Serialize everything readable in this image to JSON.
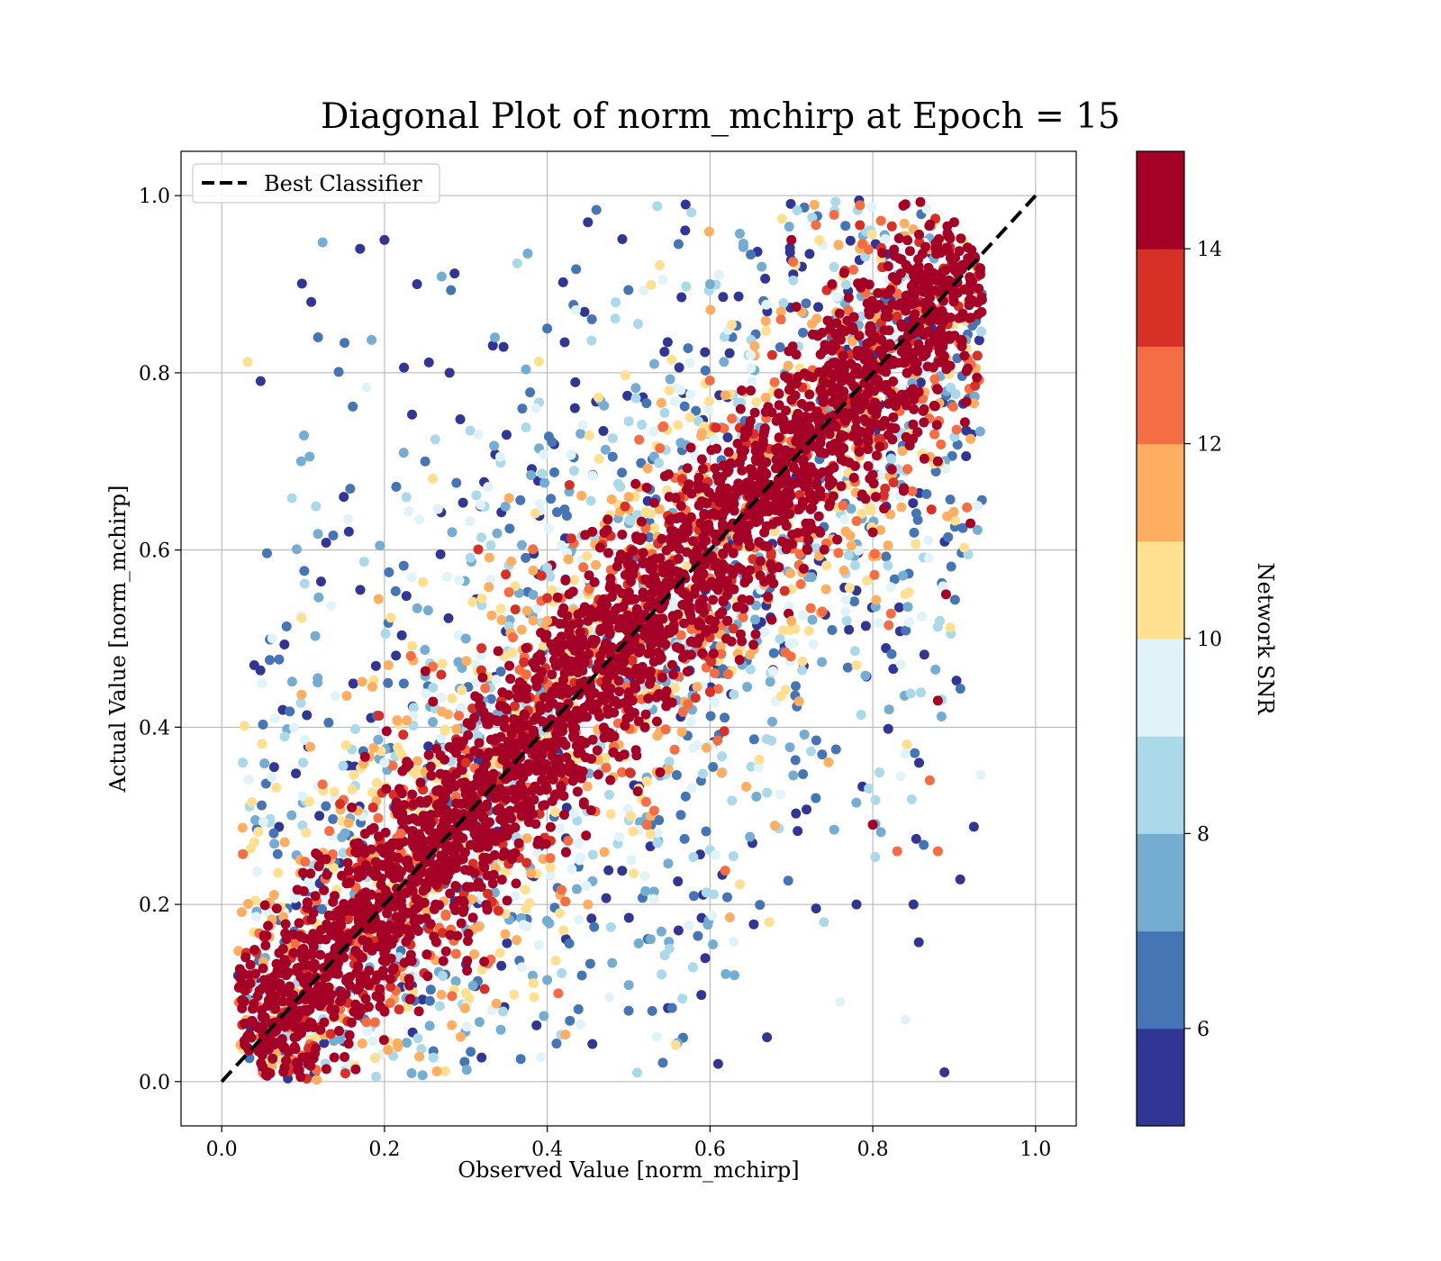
{
  "chart_data": {
    "type": "scatter",
    "title": "Diagonal Plot of norm_mchirp at Epoch = 15",
    "xlabel": "Observed Value [norm_mchirp]",
    "ylabel": "Actual Value [norm_mchirp]",
    "xlim": [
      -0.05,
      1.05
    ],
    "ylim": [
      -0.05,
      1.05
    ],
    "x_ticks": [
      "0.0",
      "0.2",
      "0.4",
      "0.6",
      "0.8",
      "1.0"
    ],
    "y_ticks": [
      "0.0",
      "0.2",
      "0.4",
      "0.6",
      "0.8",
      "1.0"
    ],
    "grid": true,
    "legend": {
      "placement": "top-left",
      "entries": [
        "Best Classifier"
      ]
    },
    "reference_line": {
      "name": "Best Classifier",
      "style": "dashed",
      "color": "#000000",
      "x": [
        0.0,
        1.0
      ],
      "y": [
        0.0,
        1.0
      ]
    },
    "colorbar": {
      "label": "Network SNR",
      "range": [
        5,
        15
      ],
      "ticks": [
        "6",
        "8",
        "10",
        "12",
        "14"
      ],
      "colors": [
        "#313695",
        "#4575b4",
        "#74add1",
        "#abd9e9",
        "#e0f3f8",
        "#fee090",
        "#fdae61",
        "#f46d43",
        "#d73027",
        "#a50026"
      ]
    },
    "points": [
      [
        0.05,
        0.03,
        15
      ],
      [
        0.1,
        0.08,
        15
      ],
      [
        0.15,
        0.14,
        15
      ],
      [
        0.2,
        0.2,
        15
      ],
      [
        0.25,
        0.25,
        15
      ],
      [
        0.3,
        0.29,
        15
      ],
      [
        0.35,
        0.36,
        15
      ],
      [
        0.4,
        0.4,
        15
      ],
      [
        0.45,
        0.44,
        15
      ],
      [
        0.5,
        0.5,
        15
      ],
      [
        0.55,
        0.56,
        15
      ],
      [
        0.6,
        0.59,
        15
      ],
      [
        0.65,
        0.65,
        15
      ],
      [
        0.7,
        0.71,
        15
      ],
      [
        0.75,
        0.74,
        15
      ],
      [
        0.8,
        0.8,
        15
      ],
      [
        0.85,
        0.86,
        15
      ],
      [
        0.9,
        0.9,
        15
      ],
      [
        0.52,
        0.4,
        15
      ],
      [
        0.62,
        0.5,
        15
      ],
      [
        0.72,
        0.6,
        15
      ],
      [
        0.8,
        0.62,
        15
      ],
      [
        0.88,
        0.7,
        15
      ],
      [
        0.35,
        0.42,
        15
      ],
      [
        0.45,
        0.52,
        15
      ],
      [
        0.55,
        0.66,
        15
      ],
      [
        0.65,
        0.78,
        15
      ],
      [
        0.75,
        0.9,
        15
      ],
      [
        0.8,
        0.29,
        15
      ],
      [
        0.89,
        0.55,
        15
      ],
      [
        0.92,
        0.63,
        15
      ],
      [
        0.88,
        0.43,
        15
      ],
      [
        0.9,
        0.97,
        14
      ],
      [
        0.7,
        0.95,
        14
      ],
      [
        0.3,
        0.36,
        13
      ],
      [
        0.6,
        0.44,
        13
      ],
      [
        0.83,
        0.26,
        12
      ],
      [
        0.88,
        0.26,
        12
      ],
      [
        0.87,
        0.34,
        12
      ],
      [
        0.22,
        0.28,
        12
      ],
      [
        0.4,
        0.52,
        11
      ],
      [
        0.7,
        0.52,
        11
      ],
      [
        0.5,
        0.66,
        11
      ],
      [
        0.45,
        0.2,
        11
      ],
      [
        0.84,
        0.55,
        10
      ],
      [
        0.78,
        0.47,
        10
      ],
      [
        0.3,
        0.1,
        10
      ],
      [
        0.55,
        0.78,
        10
      ],
      [
        0.84,
        0.37,
        9
      ],
      [
        0.84,
        0.07,
        9
      ],
      [
        0.76,
        0.09,
        9
      ],
      [
        0.2,
        0.36,
        9
      ],
      [
        0.65,
        0.82,
        9
      ],
      [
        0.1,
        0.36,
        8
      ],
      [
        0.55,
        0.15,
        8
      ],
      [
        0.4,
        0.58,
        8
      ],
      [
        0.74,
        0.18,
        8
      ],
      [
        0.6,
        0.9,
        7
      ],
      [
        0.3,
        0.5,
        7
      ],
      [
        0.63,
        0.12,
        7
      ],
      [
        0.82,
        0.42,
        7
      ],
      [
        0.25,
        0.7,
        6
      ],
      [
        0.4,
        0.85,
        6
      ],
      [
        0.73,
        0.32,
        6
      ],
      [
        0.5,
        0.08,
        6
      ],
      [
        0.04,
        0.47,
        5
      ],
      [
        0.11,
        0.88,
        5
      ],
      [
        0.17,
        0.94,
        5
      ],
      [
        0.2,
        0.95,
        5
      ],
      [
        0.28,
        0.8,
        5
      ],
      [
        0.35,
        0.73,
        5
      ],
      [
        0.15,
        0.66,
        5
      ],
      [
        0.67,
        0.05,
        5
      ],
      [
        0.61,
        0.02,
        5
      ],
      [
        0.78,
        0.2,
        5
      ],
      [
        0.85,
        0.2,
        5
      ],
      [
        0.12,
        0.3,
        5
      ],
      [
        0.24,
        0.9,
        5
      ],
      [
        0.45,
        0.97,
        5
      ],
      [
        0.57,
        0.99,
        5
      ]
    ]
  }
}
